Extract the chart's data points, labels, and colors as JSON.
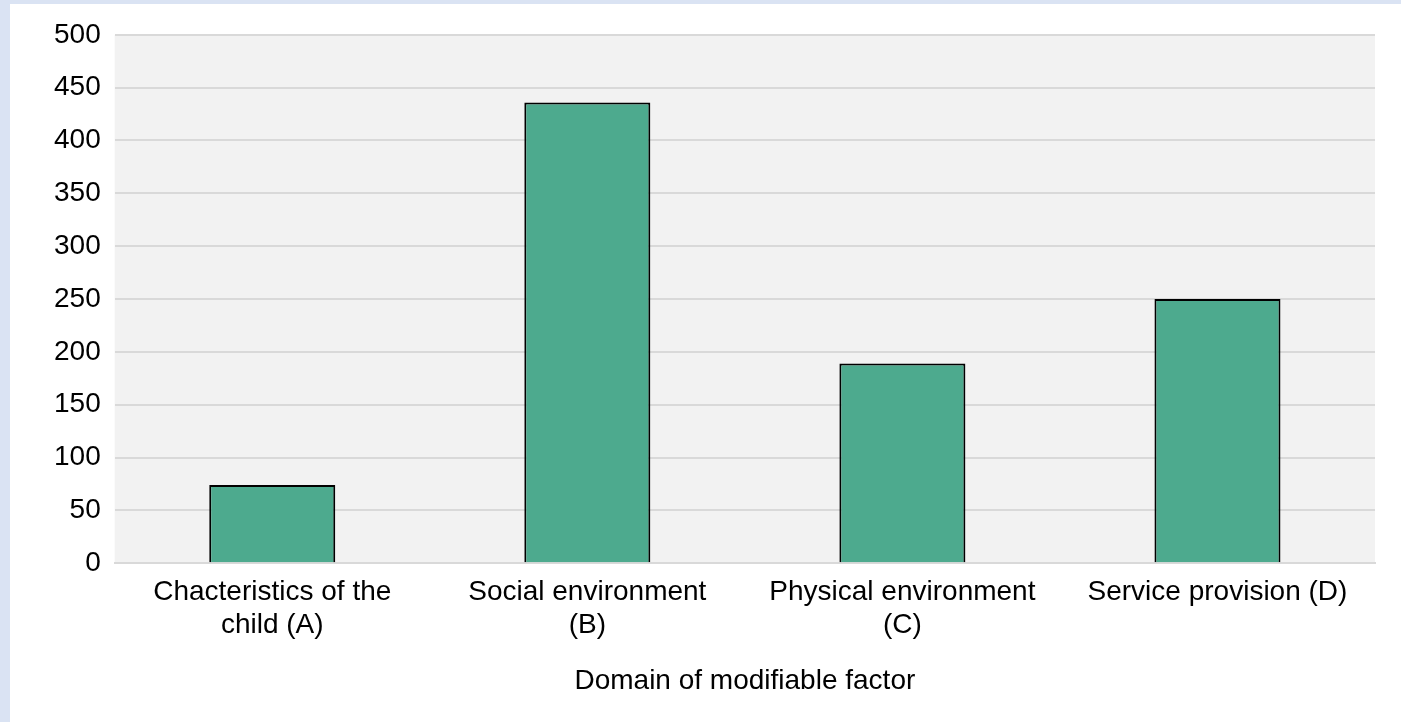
{
  "chart_data": {
    "type": "bar",
    "xlabel": "Domain of modifiable factor",
    "categories": [
      "Chacteristics of the child (A)",
      "Social environment (B)",
      "Physical environment (C)",
      "Service provision (D)"
    ],
    "values": [
      74,
      436,
      189,
      250
    ],
    "color": "#4daa8e",
    "ylim": [
      0,
      500
    ],
    "yticks": [
      0,
      50,
      100,
      150,
      200,
      250,
      300,
      350,
      400,
      450,
      500
    ],
    "grid": "y",
    "legend": false
  }
}
